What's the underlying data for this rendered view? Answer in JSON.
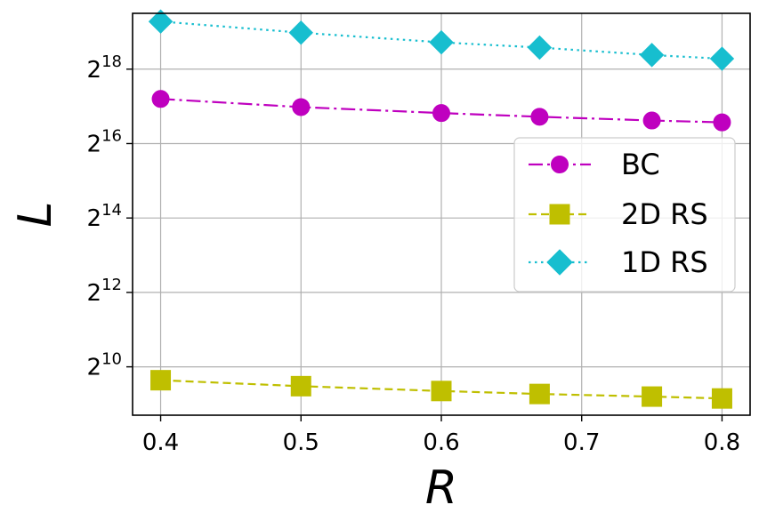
{
  "chart_data": {
    "type": "line",
    "title": "",
    "xlabel": "R",
    "ylabel": "L",
    "x": [
      0.4,
      0.5,
      0.6,
      0.67,
      0.75,
      0.8
    ],
    "xlim": [
      0.38,
      0.82
    ],
    "ylim_log2": [
      8.7,
      19.5
    ],
    "y_scale": "log2",
    "grid": true,
    "legend_position": "center-right",
    "x_ticks": [
      {
        "value": 0.4,
        "label": "0.4"
      },
      {
        "value": 0.5,
        "label": "0.5"
      },
      {
        "value": 0.6,
        "label": "0.6"
      },
      {
        "value": 0.7,
        "label": "0.7"
      },
      {
        "value": 0.8,
        "label": "0.8"
      }
    ],
    "y_ticks": [
      {
        "log2": 10,
        "base": "2",
        "exp": "10"
      },
      {
        "log2": 12,
        "base": "2",
        "exp": "12"
      },
      {
        "log2": 14,
        "base": "2",
        "exp": "14"
      },
      {
        "log2": 16,
        "base": "2",
        "exp": "16"
      },
      {
        "log2": 18,
        "base": "2",
        "exp": "18"
      }
    ],
    "series": [
      {
        "name": "BC",
        "color": "#bf00bf",
        "marker": "circle",
        "dash": "16 5 3 5",
        "log2_values": [
          17.2,
          16.98,
          16.82,
          16.72,
          16.62,
          16.57
        ]
      },
      {
        "name": "2D RS",
        "color": "#bfbf00",
        "marker": "square",
        "dash": "9 5",
        "log2_values": [
          9.64,
          9.48,
          9.35,
          9.27,
          9.2,
          9.15
        ]
      },
      {
        "name": "1D RS",
        "color": "#17becf",
        "marker": "diamond",
        "dash": "2.5 4.5",
        "log2_values": [
          19.28,
          18.98,
          18.72,
          18.58,
          18.38,
          18.28
        ]
      }
    ]
  }
}
